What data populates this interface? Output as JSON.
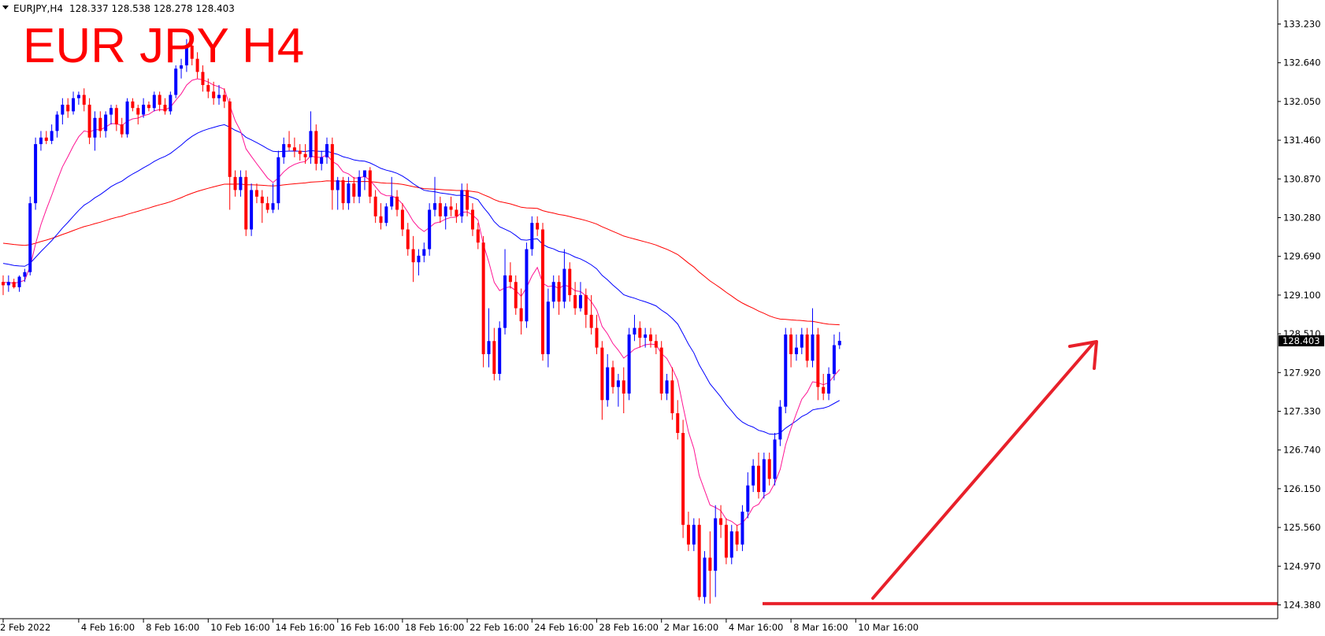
{
  "header": {
    "symbol": "EURJPY,H4",
    "ohlc": "128.337 128.538 128.278 128.403"
  },
  "title": "EUR JPY H4",
  "colors": {
    "bull": "#0000ff",
    "bear": "#ff0000",
    "ma_fast": "#ff1493",
    "ma_mid": "#0000ff",
    "ma_slow": "#ff0000",
    "annotation": "#e8202a",
    "price_tag_bg": "#000000"
  },
  "chart_data": {
    "type": "candlestick",
    "ylim": [
      124.2,
      133.5
    ],
    "y_ticks": [
      "133.230",
      "132.640",
      "132.050",
      "131.460",
      "130.870",
      "130.280",
      "129.690",
      "129.100",
      "128.510",
      "127.920",
      "127.330",
      "126.740",
      "126.150",
      "125.560",
      "124.970",
      "124.380"
    ],
    "y_tick_values": [
      133.23,
      132.64,
      132.05,
      131.46,
      130.87,
      130.28,
      129.69,
      129.1,
      128.51,
      127.92,
      127.33,
      126.74,
      126.15,
      125.56,
      124.97,
      124.38
    ],
    "x_labels": [
      "2 Feb 2022",
      "4 Feb 16:00",
      "8 Feb 16:00",
      "10 Feb 16:00",
      "14 Feb 16:00",
      "16 Feb 16:00",
      "18 Feb 16:00",
      "22 Feb 16:00",
      "24 Feb 16:00",
      "28 Feb 16:00",
      "2 Mar 16:00",
      "4 Mar 16:00",
      "8 Mar 16:00",
      "10 Mar 16:00"
    ],
    "x_label_bar_index": [
      0,
      14,
      26,
      38,
      50,
      62,
      74,
      86,
      98,
      110,
      122,
      134,
      146,
      158
    ],
    "current_price": "128.403",
    "support_level": 124.4,
    "candles": [
      [
        129.3,
        129.4,
        129.1,
        129.25
      ],
      [
        129.25,
        129.4,
        129.15,
        129.3
      ],
      [
        129.3,
        129.35,
        129.2,
        129.22
      ],
      [
        129.22,
        129.4,
        129.15,
        129.38
      ],
      [
        129.38,
        129.5,
        129.3,
        129.45
      ],
      [
        129.45,
        130.6,
        129.4,
        130.5
      ],
      [
        130.5,
        131.5,
        130.4,
        131.4
      ],
      [
        131.4,
        131.6,
        131.3,
        131.5
      ],
      [
        131.5,
        131.6,
        131.4,
        131.45
      ],
      [
        131.45,
        131.7,
        131.4,
        131.6
      ],
      [
        131.6,
        131.9,
        131.5,
        131.85
      ],
      [
        131.85,
        132.1,
        131.7,
        132.0
      ],
      [
        132.0,
        132.1,
        131.8,
        131.9
      ],
      [
        131.9,
        132.2,
        131.85,
        132.1
      ],
      [
        132.1,
        132.2,
        132.0,
        132.15
      ],
      [
        132.15,
        132.25,
        131.9,
        132.0
      ],
      [
        132.0,
        132.1,
        131.4,
        131.5
      ],
      [
        131.5,
        131.9,
        131.3,
        131.8
      ],
      [
        131.8,
        131.9,
        131.5,
        131.6
      ],
      [
        131.6,
        131.9,
        131.5,
        131.85
      ],
      [
        131.85,
        132.0,
        131.7,
        131.95
      ],
      [
        131.95,
        132.0,
        131.6,
        131.7
      ],
      [
        131.7,
        131.8,
        131.5,
        131.55
      ],
      [
        131.55,
        132.1,
        131.5,
        132.05
      ],
      [
        132.05,
        132.1,
        131.9,
        131.95
      ],
      [
        131.95,
        132.0,
        131.7,
        131.85
      ],
      [
        131.85,
        132.1,
        131.8,
        132.0
      ],
      [
        132.0,
        132.05,
        131.9,
        131.95
      ],
      [
        131.95,
        132.2,
        131.9,
        132.15
      ],
      [
        132.15,
        132.2,
        131.9,
        132.0
      ],
      [
        132.0,
        132.1,
        131.85,
        131.9
      ],
      [
        131.9,
        132.2,
        131.85,
        132.15
      ],
      [
        132.15,
        132.6,
        132.1,
        132.55
      ],
      [
        132.55,
        132.7,
        132.4,
        132.6
      ],
      [
        132.6,
        133.0,
        132.5,
        132.9
      ],
      [
        132.9,
        133.1,
        132.6,
        132.7
      ],
      [
        132.7,
        132.8,
        132.4,
        132.5
      ],
      [
        132.5,
        132.6,
        132.2,
        132.3
      ],
      [
        132.3,
        132.4,
        132.1,
        132.2
      ],
      [
        132.2,
        132.35,
        132.0,
        132.1
      ],
      [
        132.1,
        132.3,
        132.0,
        132.15
      ],
      [
        132.15,
        132.25,
        131.95,
        132.05
      ],
      [
        132.05,
        132.1,
        130.4,
        130.9
      ],
      [
        130.9,
        131.0,
        130.6,
        130.7
      ],
      [
        130.7,
        131.0,
        130.6,
        130.9
      ],
      [
        130.9,
        131.0,
        130.0,
        130.1
      ],
      [
        130.1,
        130.8,
        130.0,
        130.7
      ],
      [
        130.7,
        130.8,
        130.5,
        130.6
      ],
      [
        130.6,
        130.7,
        130.2,
        130.5
      ],
      [
        130.5,
        130.6,
        130.35,
        130.4
      ],
      [
        130.4,
        130.8,
        130.35,
        130.5
      ],
      [
        130.5,
        131.3,
        130.4,
        131.2
      ],
      [
        131.2,
        131.5,
        131.1,
        131.4
      ],
      [
        131.4,
        131.6,
        131.3,
        131.35
      ],
      [
        131.35,
        131.5,
        131.2,
        131.3
      ],
      [
        131.3,
        131.4,
        131.15,
        131.25
      ],
      [
        131.25,
        131.4,
        131.1,
        131.2
      ],
      [
        131.2,
        131.9,
        131.1,
        131.6
      ],
      [
        131.6,
        131.7,
        131.0,
        131.1
      ],
      [
        131.1,
        131.3,
        131.0,
        131.2
      ],
      [
        131.2,
        131.5,
        131.1,
        131.4
      ],
      [
        131.4,
        131.5,
        130.4,
        130.7
      ],
      [
        130.7,
        130.9,
        130.4,
        130.85
      ],
      [
        130.85,
        130.9,
        130.4,
        130.5
      ],
      [
        130.5,
        130.9,
        130.4,
        130.8
      ],
      [
        130.8,
        130.9,
        130.5,
        130.6
      ],
      [
        130.6,
        131.0,
        130.5,
        130.9
      ],
      [
        130.9,
        131.0,
        130.7,
        131.0
      ],
      [
        131.0,
        131.05,
        130.5,
        130.6
      ],
      [
        130.6,
        130.7,
        130.2,
        130.3
      ],
      [
        130.3,
        130.5,
        130.1,
        130.2
      ],
      [
        130.2,
        130.5,
        130.15,
        130.45
      ],
      [
        130.45,
        130.9,
        130.4,
        130.6
      ],
      [
        130.6,
        130.7,
        130.3,
        130.4
      ],
      [
        130.4,
        130.5,
        130.0,
        130.1
      ],
      [
        130.1,
        130.2,
        129.7,
        129.8
      ],
      [
        129.8,
        130.0,
        129.3,
        129.6
      ],
      [
        129.6,
        129.8,
        129.4,
        129.7
      ],
      [
        129.7,
        129.9,
        129.6,
        129.8
      ],
      [
        129.8,
        130.5,
        129.7,
        130.4
      ],
      [
        130.4,
        130.9,
        130.3,
        130.5
      ],
      [
        130.5,
        130.6,
        130.2,
        130.3
      ],
      [
        130.3,
        130.5,
        130.1,
        130.45
      ],
      [
        130.45,
        130.6,
        130.3,
        130.4
      ],
      [
        130.4,
        130.5,
        130.2,
        130.3
      ],
      [
        130.3,
        130.8,
        130.2,
        130.7
      ],
      [
        130.7,
        130.8,
        130.3,
        130.4
      ],
      [
        130.4,
        130.5,
        130.0,
        130.1
      ],
      [
        130.1,
        130.2,
        129.8,
        129.9
      ],
      [
        129.9,
        130.0,
        128.0,
        128.2
      ],
      [
        128.2,
        128.9,
        128.0,
        128.4
      ],
      [
        128.4,
        128.6,
        127.8,
        127.9
      ],
      [
        127.9,
        128.7,
        127.8,
        128.6
      ],
      [
        128.6,
        129.8,
        128.5,
        129.4
      ],
      [
        129.4,
        129.6,
        129.2,
        129.3
      ],
      [
        129.3,
        129.4,
        128.8,
        128.9
      ],
      [
        128.9,
        129.2,
        128.5,
        128.7
      ],
      [
        128.7,
        129.9,
        128.6,
        129.8
      ],
      [
        129.8,
        130.3,
        129.7,
        130.2
      ],
      [
        130.2,
        130.3,
        130.0,
        130.1
      ],
      [
        130.1,
        130.2,
        128.1,
        128.2
      ],
      [
        128.2,
        129.2,
        128.0,
        129.0
      ],
      [
        129.0,
        129.4,
        128.9,
        129.3
      ],
      [
        129.3,
        129.4,
        128.8,
        129.0
      ],
      [
        129.0,
        129.8,
        128.9,
        129.5
      ],
      [
        129.5,
        129.6,
        129.0,
        129.1
      ],
      [
        129.1,
        129.3,
        128.8,
        128.9
      ],
      [
        128.9,
        129.3,
        128.85,
        129.1
      ],
      [
        129.1,
        129.2,
        128.6,
        128.8
      ],
      [
        128.8,
        129.1,
        128.5,
        128.6
      ],
      [
        128.6,
        128.8,
        128.2,
        128.3
      ],
      [
        128.3,
        128.4,
        127.2,
        127.5
      ],
      [
        127.5,
        128.2,
        127.4,
        128.0
      ],
      [
        128.0,
        128.1,
        127.6,
        127.7
      ],
      [
        127.7,
        127.9,
        127.4,
        127.8
      ],
      [
        127.8,
        128.0,
        127.3,
        127.6
      ],
      [
        127.6,
        128.6,
        127.5,
        128.5
      ],
      [
        128.5,
        128.8,
        128.4,
        128.6
      ],
      [
        128.6,
        128.7,
        128.3,
        128.45
      ],
      [
        128.45,
        128.6,
        128.3,
        128.5
      ],
      [
        128.5,
        128.6,
        128.3,
        128.4
      ],
      [
        128.4,
        128.5,
        128.2,
        128.3
      ],
      [
        128.3,
        128.4,
        127.5,
        127.6
      ],
      [
        127.6,
        127.9,
        127.5,
        127.8
      ],
      [
        127.8,
        128.0,
        127.2,
        127.3
      ],
      [
        127.3,
        127.5,
        126.9,
        127.0
      ],
      [
        127.0,
        127.2,
        125.4,
        125.6
      ],
      [
        125.6,
        125.8,
        125.2,
        125.3
      ],
      [
        125.3,
        125.7,
        125.2,
        125.6
      ],
      [
        125.6,
        125.7,
        124.45,
        124.5
      ],
      [
        124.5,
        125.2,
        124.4,
        125.1
      ],
      [
        125.1,
        125.5,
        124.4,
        124.9
      ],
      [
        124.9,
        125.9,
        124.5,
        125.7
      ],
      [
        125.7,
        125.9,
        125.4,
        125.6
      ],
      [
        125.6,
        125.7,
        125.0,
        125.1
      ],
      [
        125.1,
        125.6,
        125.0,
        125.5
      ],
      [
        125.5,
        125.6,
        125.2,
        125.3
      ],
      [
        125.3,
        125.9,
        125.2,
        125.8
      ],
      [
        125.8,
        126.4,
        125.7,
        126.2
      ],
      [
        126.2,
        126.6,
        126.1,
        126.5
      ],
      [
        126.5,
        126.7,
        126.0,
        126.1
      ],
      [
        126.1,
        126.7,
        126.0,
        126.6
      ],
      [
        126.6,
        126.7,
        126.2,
        126.3
      ],
      [
        126.3,
        127.0,
        126.2,
        126.9
      ],
      [
        126.9,
        127.5,
        126.8,
        127.4
      ],
      [
        127.4,
        128.6,
        127.3,
        128.5
      ],
      [
        128.5,
        128.6,
        128.0,
        128.2
      ],
      [
        128.2,
        128.5,
        128.1,
        128.3
      ],
      [
        128.3,
        128.6,
        128.2,
        128.5
      ],
      [
        128.5,
        128.6,
        128.0,
        128.1
      ],
      [
        128.1,
        128.9,
        128.0,
        128.5
      ],
      [
        128.5,
        128.6,
        127.5,
        127.7
      ],
      [
        127.7,
        127.9,
        127.5,
        127.6
      ],
      [
        127.6,
        128.0,
        127.5,
        127.9
      ],
      [
        127.9,
        128.5,
        127.8,
        128.337
      ],
      [
        128.337,
        128.538,
        128.278,
        128.403
      ]
    ]
  }
}
